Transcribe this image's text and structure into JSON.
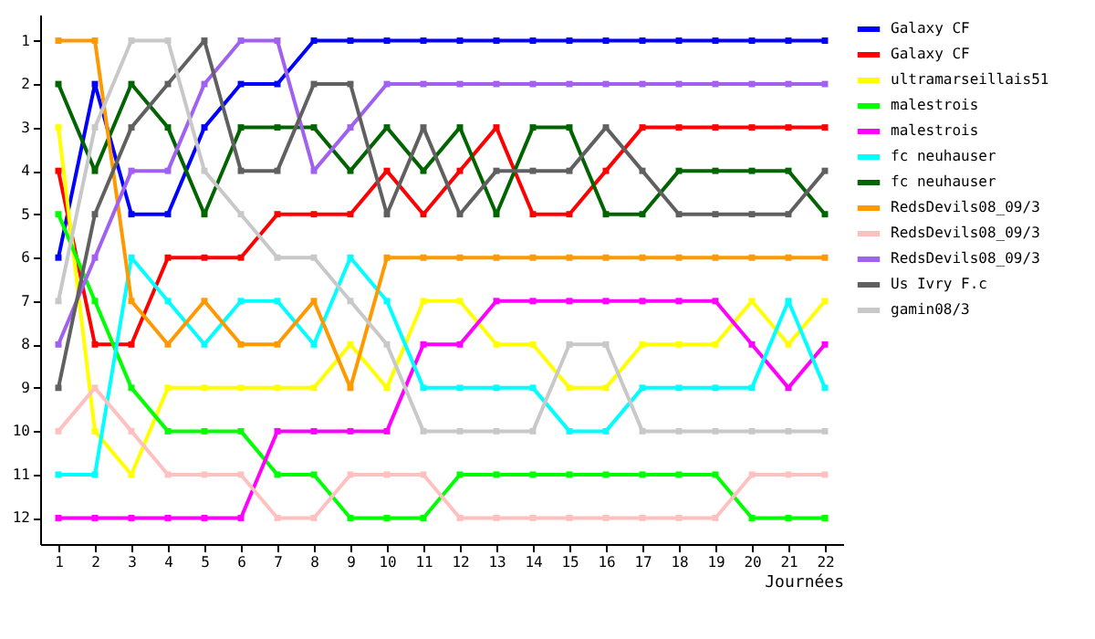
{
  "chart_data": {
    "type": "line",
    "xlabel": "Journées",
    "x": [
      1,
      2,
      3,
      4,
      5,
      6,
      7,
      8,
      9,
      10,
      11,
      12,
      13,
      14,
      15,
      16,
      17,
      18,
      19,
      20,
      21,
      22
    ],
    "xlim": [
      0.5,
      22.5
    ],
    "xticks": [
      1,
      2,
      3,
      4,
      5,
      6,
      7,
      8,
      9,
      10,
      11,
      12,
      13,
      14,
      15,
      16,
      17,
      18,
      19,
      20,
      21,
      22
    ],
    "ylim": [
      12.6,
      0.4
    ],
    "yticks": [
      1,
      2,
      3,
      4,
      5,
      6,
      7,
      8,
      9,
      10,
      11,
      12
    ],
    "grid": false,
    "legend": "right",
    "marker": "square",
    "line_style": "solid",
    "series": [
      {
        "name": "Galaxy CF",
        "color": "#0000ff",
        "values": [
          6,
          2,
          5,
          5,
          3,
          2,
          2,
          1,
          1,
          1,
          1,
          1,
          1,
          1,
          1,
          1,
          1,
          1,
          1,
          1,
          1,
          1
        ]
      },
      {
        "name": "Galaxy CF",
        "color": "#ff0000",
        "values": [
          4,
          8,
          8,
          6,
          6,
          6,
          5,
          5,
          5,
          4,
          5,
          4,
          3,
          5,
          5,
          4,
          3,
          3,
          3,
          3,
          3,
          3
        ]
      },
      {
        "name": "ultramarseillais51",
        "color": "#ffff00",
        "values": [
          3,
          10,
          11,
          9,
          9,
          9,
          9,
          9,
          8,
          9,
          7,
          7,
          8,
          8,
          9,
          9,
          8,
          8,
          8,
          7,
          8,
          7
        ]
      },
      {
        "name": "malestrois",
        "color": "#00ff00",
        "values": [
          5,
          7,
          9,
          10,
          10,
          10,
          11,
          11,
          12,
          12,
          12,
          11,
          11,
          11,
          11,
          11,
          11,
          11,
          11,
          12,
          12,
          12
        ]
      },
      {
        "name": "malestrois",
        "color": "#ff00ff",
        "values": [
          12,
          12,
          12,
          12,
          12,
          12,
          10,
          10,
          10,
          10,
          8,
          8,
          7,
          7,
          7,
          7,
          7,
          7,
          7,
          8,
          9,
          8
        ]
      },
      {
        "name": "fc neuhauser",
        "color": "#00ffff",
        "values": [
          11,
          11,
          6,
          7,
          8,
          7,
          7,
          8,
          6,
          7,
          9,
          9,
          9,
          9,
          10,
          10,
          9,
          9,
          9,
          9,
          7,
          9
        ]
      },
      {
        "name": "fc neuhauser",
        "color": "#006400",
        "values": [
          2,
          4,
          2,
          3,
          5,
          3,
          3,
          3,
          4,
          3,
          4,
          3,
          5,
          3,
          3,
          5,
          5,
          4,
          4,
          4,
          4,
          5
        ]
      },
      {
        "name": "RedsDevils08_09/3",
        "color": "#ff9900",
        "values": [
          1,
          1,
          7,
          8,
          7,
          8,
          8,
          7,
          9,
          6,
          6,
          6,
          6,
          6,
          6,
          6,
          6,
          6,
          6,
          6,
          6,
          6
        ]
      },
      {
        "name": "RedsDevils08_09/3",
        "color": "#ffc0c0",
        "values": [
          10,
          9,
          10,
          11,
          11,
          11,
          12,
          12,
          11,
          11,
          11,
          12,
          12,
          12,
          12,
          12,
          12,
          12,
          12,
          11,
          11,
          11
        ]
      },
      {
        "name": "RedsDevils08_09/3",
        "color": "#a060f0",
        "values": [
          8,
          6,
          4,
          4,
          2,
          1,
          1,
          4,
          3,
          2,
          2,
          2,
          2,
          2,
          2,
          2,
          2,
          2,
          2,
          2,
          2,
          2
        ]
      },
      {
        "name": "Us Ivry F.c",
        "color": "#606060",
        "values": [
          9,
          5,
          3,
          2,
          1,
          4,
          4,
          2,
          2,
          5,
          3,
          5,
          4,
          4,
          4,
          3,
          4,
          5,
          5,
          5,
          5,
          4
        ]
      },
      {
        "name": "gamin08/3",
        "color": "#c8c8c8",
        "values": [
          7,
          3,
          1,
          1,
          4,
          5,
          6,
          6,
          7,
          8,
          10,
          10,
          10,
          10,
          8,
          8,
          10,
          10,
          10,
          10,
          10,
          10
        ]
      }
    ]
  }
}
